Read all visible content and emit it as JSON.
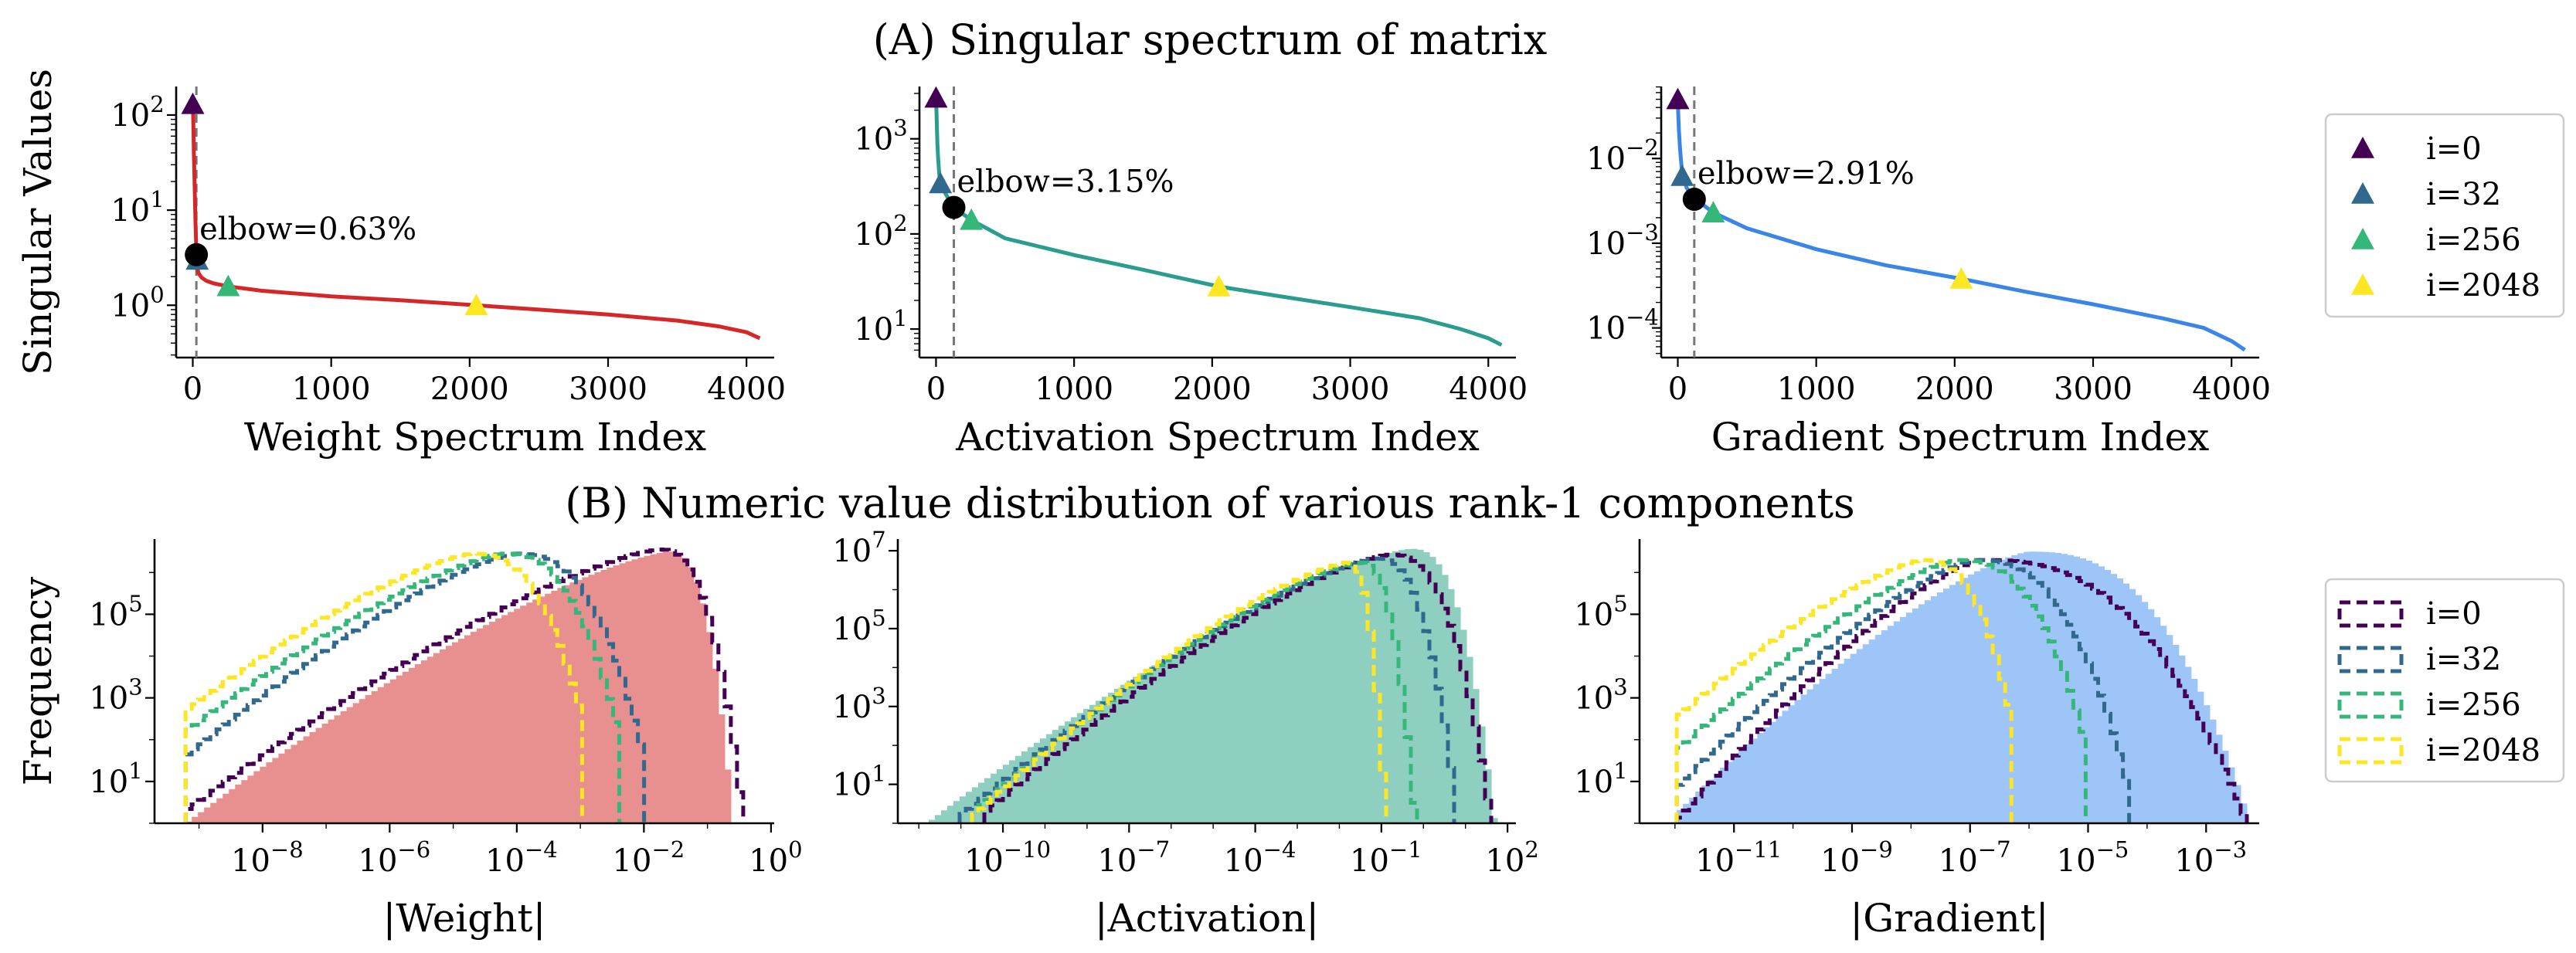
{
  "figure": {
    "title_a": "(A) Singular spectrum of matrix",
    "title_b": "(B) Numeric value distribution of various rank-1 components"
  },
  "legend_a": [
    {
      "label": "i=0",
      "color": "#440154"
    },
    {
      "label": "i=32",
      "color": "#31688e"
    },
    {
      "label": "i=256",
      "color": "#35b779"
    },
    {
      "label": "i=2048",
      "color": "#fde725"
    }
  ],
  "legend_b": [
    {
      "label": "i=0",
      "color": "#440154"
    },
    {
      "label": "i=32",
      "color": "#31688e"
    },
    {
      "label": "i=256",
      "color": "#35b779"
    },
    {
      "label": "i=2048",
      "color": "#fde725"
    }
  ],
  "chart_data": [
    {
      "type": "line",
      "panel": "A-weight",
      "xlabel": "Weight Spectrum Index",
      "ylabel": "Singular Values",
      "yscale": "log",
      "xlim": [
        -120,
        4200
      ],
      "ylim_log10": [
        -0.55,
        2.3
      ],
      "xticks": [
        0,
        1000,
        2000,
        3000,
        4000
      ],
      "yticks": [
        0,
        1,
        2
      ],
      "line_color": "#d62728",
      "curve": [
        [
          0,
          130
        ],
        [
          3,
          100
        ],
        [
          5,
          70
        ],
        [
          8,
          40
        ],
        [
          12,
          22
        ],
        [
          16,
          12
        ],
        [
          20,
          7
        ],
        [
          24,
          4.6
        ],
        [
          26,
          3.4
        ],
        [
          30,
          2.6
        ],
        [
          40,
          2.2
        ],
        [
          64,
          1.95
        ],
        [
          100,
          1.8
        ],
        [
          150,
          1.7
        ],
        [
          256,
          1.58
        ],
        [
          500,
          1.42
        ],
        [
          1000,
          1.24
        ],
        [
          1500,
          1.13
        ],
        [
          2048,
          1.0
        ],
        [
          2500,
          0.9
        ],
        [
          3000,
          0.8
        ],
        [
          3500,
          0.69
        ],
        [
          3800,
          0.6
        ],
        [
          4000,
          0.52
        ],
        [
          4096,
          0.45
        ]
      ],
      "elbow": {
        "x": 26,
        "y": 3.4,
        "label": "elbow=0.63%"
      },
      "markers": [
        {
          "label": "i=0",
          "x": 0,
          "y": 130
        },
        {
          "label": "i=32",
          "x": 32,
          "y": 3.0
        },
        {
          "label": "i=256",
          "x": 256,
          "y": 1.58
        },
        {
          "label": "i=2048",
          "x": 2048,
          "y": 1.0
        }
      ]
    },
    {
      "type": "line",
      "panel": "A-activation",
      "xlabel": "Activation Spectrum Index",
      "ylabel": "",
      "yscale": "log",
      "xlim": [
        -120,
        4200
      ],
      "ylim_log10": [
        0.7,
        3.55
      ],
      "xticks": [
        0,
        1000,
        2000,
        3000,
        4000
      ],
      "yticks": [
        1,
        2,
        3
      ],
      "line_color": "#2a9d8f",
      "curve": [
        [
          0,
          2700
        ],
        [
          3,
          2000
        ],
        [
          6,
          1400
        ],
        [
          10,
          900
        ],
        [
          16,
          600
        ],
        [
          24,
          420
        ],
        [
          32,
          340
        ],
        [
          60,
          280
        ],
        [
          100,
          220
        ],
        [
          129,
          190
        ],
        [
          200,
          160
        ],
        [
          256,
          140
        ],
        [
          500,
          90
        ],
        [
          1000,
          60
        ],
        [
          1500,
          42
        ],
        [
          2048,
          28
        ],
        [
          2500,
          22
        ],
        [
          3000,
          17
        ],
        [
          3500,
          13
        ],
        [
          3800,
          10
        ],
        [
          4000,
          8
        ],
        [
          4096,
          6.8
        ]
      ],
      "elbow": {
        "x": 129,
        "y": 190,
        "label": "elbow=3.15%"
      },
      "markers": [
        {
          "label": "i=0",
          "x": 0,
          "y": 2700
        },
        {
          "label": "i=32",
          "x": 32,
          "y": 340
        },
        {
          "label": "i=256",
          "x": 256,
          "y": 140
        },
        {
          "label": "i=2048",
          "x": 2048,
          "y": 28
        }
      ]
    },
    {
      "type": "line",
      "panel": "A-gradient",
      "xlabel": "Gradient Spectrum Index",
      "ylabel": "",
      "yscale": "log",
      "xlim": [
        -120,
        4200
      ],
      "ylim_log10": [
        -4.35,
        -1.15
      ],
      "xticks": [
        0,
        1000,
        2000,
        3000,
        4000
      ],
      "yticks": [
        -4,
        -3,
        -2
      ],
      "line_color": "#3a86e8",
      "curve": [
        [
          0,
          0.05
        ],
        [
          3,
          0.035
        ],
        [
          8,
          0.022
        ],
        [
          16,
          0.013
        ],
        [
          32,
          0.0065
        ],
        [
          64,
          0.0045
        ],
        [
          100,
          0.0037
        ],
        [
          119,
          0.0033
        ],
        [
          200,
          0.0027
        ],
        [
          256,
          0.0023
        ],
        [
          500,
          0.0015
        ],
        [
          1000,
          0.00085
        ],
        [
          1500,
          0.00055
        ],
        [
          2048,
          0.00038
        ],
        [
          2500,
          0.00027
        ],
        [
          3000,
          0.00019
        ],
        [
          3500,
          0.00013
        ],
        [
          3800,
          0.0001
        ],
        [
          4000,
          7e-05
        ],
        [
          4096,
          5.5e-05
        ]
      ],
      "elbow": {
        "x": 119,
        "y": 0.0033,
        "label": "elbow=2.91%"
      },
      "markers": [
        {
          "label": "i=0",
          "x": 0,
          "y": 0.05
        },
        {
          "label": "i=32",
          "x": 32,
          "y": 0.0062
        },
        {
          "label": "i=256",
          "x": 256,
          "y": 0.0023
        },
        {
          "label": "i=2048",
          "x": 2048,
          "y": 0.00038
        }
      ]
    },
    {
      "type": "histogram",
      "panel": "B-weight",
      "xlabel": "|Weight|",
      "ylabel": "Frequency",
      "xscale": "log",
      "yscale": "log",
      "xlim_log10": [
        -9.7,
        0.05
      ],
      "ylim_log10": [
        0,
        6.8
      ],
      "xticks": [
        -8,
        -6,
        -4,
        -2,
        0
      ],
      "yticks": [
        1,
        3,
        5
      ],
      "filled": {
        "color": "#e89090",
        "lo": -9.2,
        "peak": -1.6,
        "hi": -0.6,
        "ymin": 0,
        "ypeak": 6.5
      },
      "step": [
        {
          "label": "i=0",
          "lo": -9.2,
          "peak": -1.75,
          "hi": -0.45,
          "ymin": 0.3,
          "ypeak": 6.55
        },
        {
          "label": "i=32",
          "lo": -9.2,
          "peak": -4.0,
          "hi": -2.0,
          "ymin": 1.6,
          "ypeak": 6.45
        },
        {
          "label": "i=256",
          "lo": -9.2,
          "peak": -4.2,
          "hi": -2.4,
          "ymin": 2.2,
          "ypeak": 6.45
        },
        {
          "label": "i=2048",
          "lo": -9.2,
          "peak": -4.7,
          "hi": -3.0,
          "ymin": 2.7,
          "ypeak": 6.45
        }
      ]
    },
    {
      "type": "histogram",
      "panel": "B-activation",
      "xlabel": "|Activation|",
      "ylabel": "",
      "xscale": "log",
      "yscale": "log",
      "xlim_log10": [
        -12.5,
        2.2
      ],
      "ylim_log10": [
        0,
        7.3
      ],
      "xticks": [
        -10,
        -7,
        -4,
        -1,
        2
      ],
      "yticks": [
        1,
        3,
        5,
        7
      ],
      "filled": {
        "color": "#8fcfc0",
        "lo": -11.8,
        "peak": -0.3,
        "hi": 1.7,
        "ymin": 0,
        "ypeak": 7.05
      },
      "step": [
        {
          "label": "i=0",
          "lo": -10.5,
          "peak": -0.8,
          "hi": 1.6,
          "ymin": 0.2,
          "ypeak": 6.9
        },
        {
          "label": "i=32",
          "lo": -11.0,
          "peak": -1.1,
          "hi": 0.8,
          "ymin": 0.2,
          "ypeak": 6.8
        },
        {
          "label": "i=256",
          "lo": -10.8,
          "peak": -1.5,
          "hi": -0.2,
          "ymin": 0.2,
          "ypeak": 6.7
        },
        {
          "label": "i=2048",
          "lo": -10.7,
          "peak": -1.8,
          "hi": -0.9,
          "ymin": 0.2,
          "ypeak": 6.7
        }
      ]
    },
    {
      "type": "histogram",
      "panel": "B-gradient",
      "xlabel": "|Gradient|",
      "ylabel": "",
      "xscale": "log",
      "yscale": "log",
      "xlim_log10": [
        -12.6,
        -2.1
      ],
      "ylim_log10": [
        0,
        6.8
      ],
      "xticks": [
        -11,
        -9,
        -7,
        -5,
        -3
      ],
      "yticks": [
        1,
        3,
        5
      ],
      "filled": {
        "color": "#9ec5f7",
        "lo": -12.0,
        "peak": -6.0,
        "hi": -2.3,
        "ymin": 0.2,
        "ypeak": 6.5
      },
      "step": [
        {
          "label": "i=0",
          "lo": -12.0,
          "peak": -6.8,
          "hi": -2.3,
          "ymin": 0.0,
          "ypeak": 6.3
        },
        {
          "label": "i=32",
          "lo": -12.0,
          "peak": -6.9,
          "hi": -4.3,
          "ymin": 0.8,
          "ypeak": 6.3
        },
        {
          "label": "i=256",
          "lo": -12.0,
          "peak": -7.2,
          "hi": -5.0,
          "ymin": 1.7,
          "ypeak": 6.3
        },
        {
          "label": "i=2048",
          "lo": -12.0,
          "peak": -7.8,
          "hi": -6.3,
          "ymin": 2.5,
          "ypeak": 6.3
        }
      ]
    }
  ]
}
